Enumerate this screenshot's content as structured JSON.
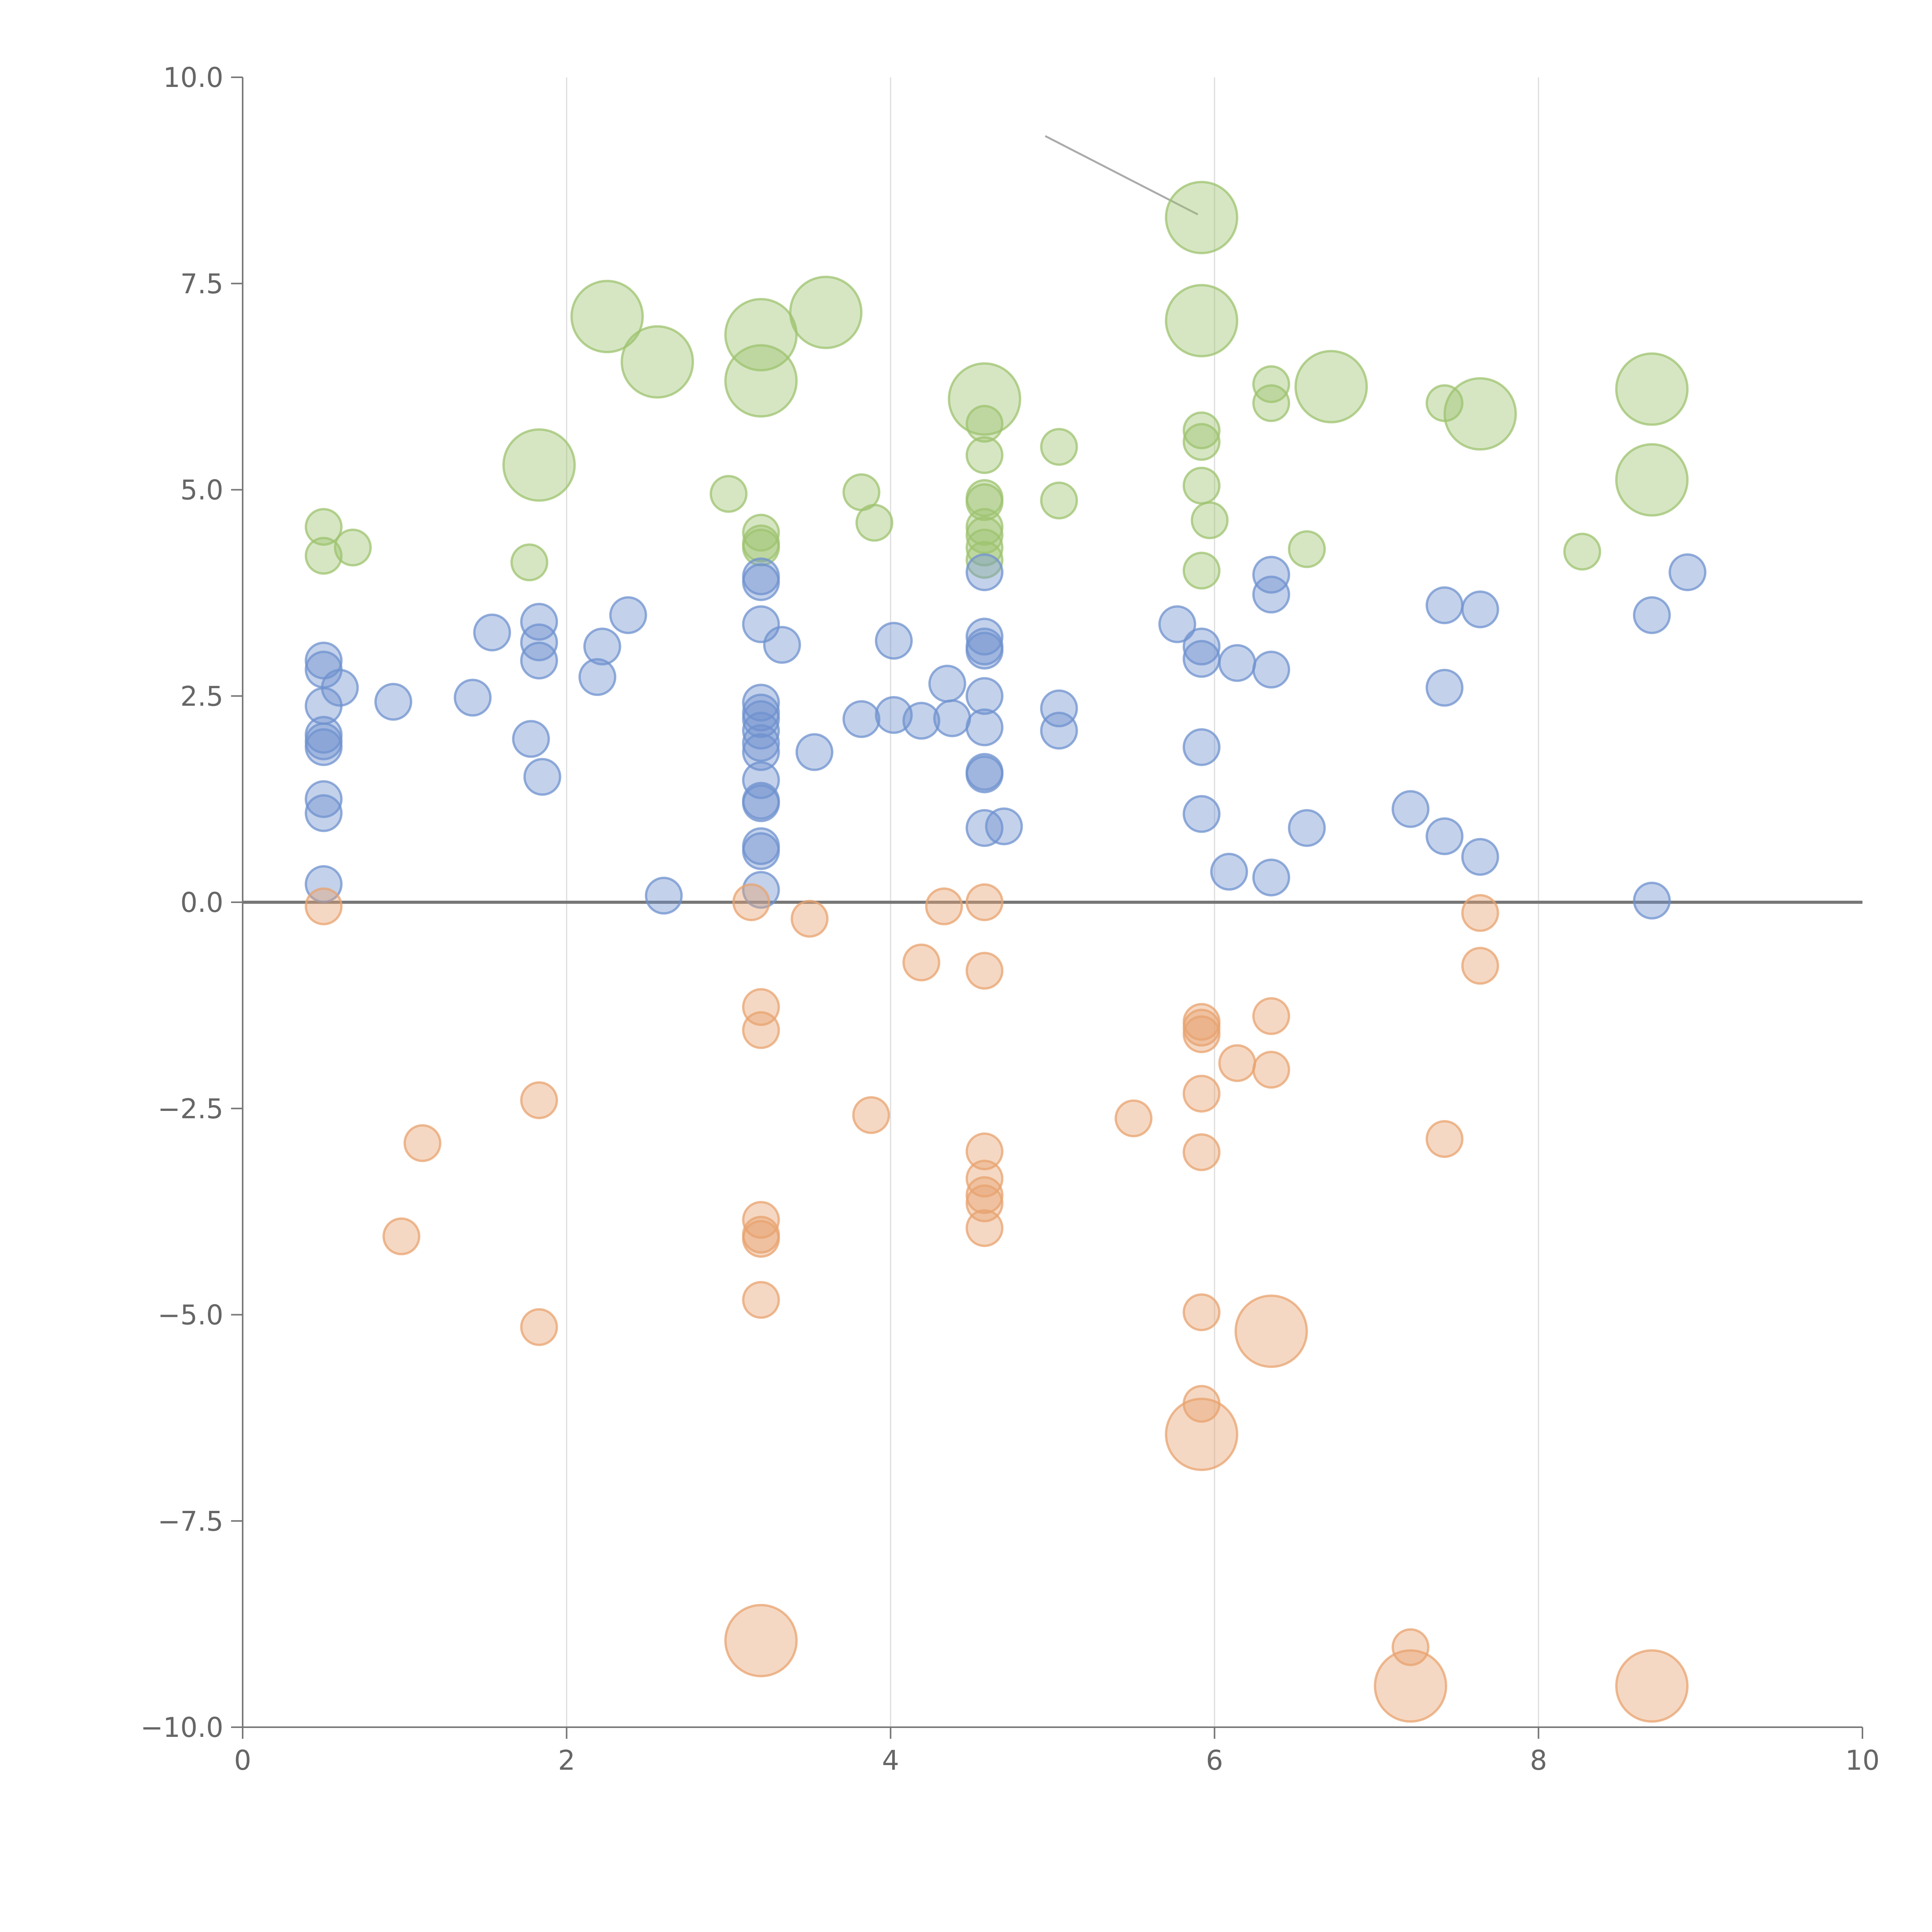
{
  "chart_data": {
    "type": "scatter",
    "title": "",
    "xlabel": "",
    "ylabel": "",
    "xlim": [
      0,
      10
    ],
    "ylim": [
      -10,
      10
    ],
    "x_ticks": [
      0,
      2,
      4,
      6,
      8,
      10
    ],
    "x_tick_labels": [
      "0",
      "2",
      "4",
      "6",
      "8",
      "10"
    ],
    "y_ticks": [
      10,
      7.5,
      5,
      2.5,
      0,
      -2.5,
      -5,
      -7.5,
      -10
    ],
    "y_tick_labels": [
      "10.0",
      "7.5",
      "5.0",
      "2.5",
      "0.0",
      "−2.5",
      "−5.0",
      "−7.5",
      "−10.0"
    ],
    "grid": "vertical lines at x ticks",
    "reference_line": {
      "y": 0
    },
    "colors": {
      "green": "#9dc36f",
      "blue": "#6f92cf",
      "orange": "#e8a36f"
    },
    "series": [
      {
        "color": "#9dc36f",
        "points": [
          {
            "x": 0.5,
            "y": 4.55,
            "size": 1
          },
          {
            "x": 0.5,
            "y": 4.2,
            "size": 1
          },
          {
            "x": 0.68,
            "y": 4.3,
            "size": 1
          },
          {
            "x": 1.77,
            "y": 4.12,
            "size": 1
          },
          {
            "x": 1.83,
            "y": 5.3,
            "size": 3
          },
          {
            "x": 2.25,
            "y": 7.1,
            "size": 3
          },
          {
            "x": 2.56,
            "y": 6.55,
            "size": 3
          },
          {
            "x": 3.0,
            "y": 4.95,
            "size": 1
          },
          {
            "x": 3.2,
            "y": 4.48,
            "size": 1
          },
          {
            "x": 3.2,
            "y": 4.35,
            "size": 1
          },
          {
            "x": 3.2,
            "y": 4.3,
            "size": 1
          },
          {
            "x": 3.2,
            "y": 6.88,
            "size": 3
          },
          {
            "x": 3.2,
            "y": 6.32,
            "size": 3
          },
          {
            "x": 3.6,
            "y": 7.15,
            "size": 3
          },
          {
            "x": 3.82,
            "y": 4.97,
            "size": 1
          },
          {
            "x": 3.9,
            "y": 4.6,
            "size": 1
          },
          {
            "x": 4.58,
            "y": 6.1,
            "size": 3
          },
          {
            "x": 4.58,
            "y": 5.8,
            "size": 1
          },
          {
            "x": 4.58,
            "y": 5.42,
            "size": 1
          },
          {
            "x": 4.58,
            "y": 4.9,
            "size": 1
          },
          {
            "x": 4.58,
            "y": 4.85,
            "size": 1
          },
          {
            "x": 4.58,
            "y": 4.55,
            "size": 1
          },
          {
            "x": 4.58,
            "y": 4.45,
            "size": 1
          },
          {
            "x": 4.58,
            "y": 4.3,
            "size": 1
          },
          {
            "x": 4.58,
            "y": 4.15,
            "size": 1
          },
          {
            "x": 5.04,
            "y": 5.52,
            "size": 1
          },
          {
            "x": 5.04,
            "y": 4.87,
            "size": 1
          },
          {
            "x": 5.92,
            "y": 8.3,
            "size": 3
          },
          {
            "x": 5.92,
            "y": 7.05,
            "size": 3
          },
          {
            "x": 5.92,
            "y": 5.72,
            "size": 1
          },
          {
            "x": 5.92,
            "y": 5.58,
            "size": 1
          },
          {
            "x": 5.92,
            "y": 5.05,
            "size": 1
          },
          {
            "x": 5.92,
            "y": 4.02,
            "size": 1
          },
          {
            "x": 5.97,
            "y": 4.63,
            "size": 1
          },
          {
            "x": 6.35,
            "y": 6.28,
            "size": 1
          },
          {
            "x": 6.35,
            "y": 6.05,
            "size": 1
          },
          {
            "x": 6.57,
            "y": 4.28,
            "size": 1
          },
          {
            "x": 6.72,
            "y": 6.25,
            "size": 3
          },
          {
            "x": 7.42,
            "y": 6.05,
            "size": 1
          },
          {
            "x": 7.64,
            "y": 5.92,
            "size": 3
          },
          {
            "x": 8.27,
            "y": 4.25,
            "size": 1
          },
          {
            "x": 8.7,
            "y": 6.22,
            "size": 3
          },
          {
            "x": 8.7,
            "y": 5.12,
            "size": 3
          }
        ]
      },
      {
        "color": "#6f92cf",
        "points": [
          {
            "x": 0.5,
            "y": 2.93,
            "size": 1
          },
          {
            "x": 0.5,
            "y": 2.82,
            "size": 1
          },
          {
            "x": 0.5,
            "y": 2.38,
            "size": 1
          },
          {
            "x": 0.5,
            "y": 2.03,
            "size": 1
          },
          {
            "x": 0.5,
            "y": 1.95,
            "size": 1
          },
          {
            "x": 0.5,
            "y": 1.88,
            "size": 1
          },
          {
            "x": 0.5,
            "y": 1.25,
            "size": 1
          },
          {
            "x": 0.5,
            "y": 1.08,
            "size": 1
          },
          {
            "x": 0.5,
            "y": 0.22,
            "size": 1
          },
          {
            "x": 0.6,
            "y": 2.6,
            "size": 1
          },
          {
            "x": 0.93,
            "y": 2.43,
            "size": 1
          },
          {
            "x": 1.42,
            "y": 2.48,
            "size": 1
          },
          {
            "x": 1.54,
            "y": 3.27,
            "size": 1
          },
          {
            "x": 1.78,
            "y": 1.98,
            "size": 1
          },
          {
            "x": 1.83,
            "y": 3.4,
            "size": 1
          },
          {
            "x": 1.83,
            "y": 3.15,
            "size": 1
          },
          {
            "x": 1.83,
            "y": 2.93,
            "size": 1
          },
          {
            "x": 1.85,
            "y": 1.52,
            "size": 1
          },
          {
            "x": 2.19,
            "y": 2.73,
            "size": 1
          },
          {
            "x": 2.22,
            "y": 3.1,
            "size": 1
          },
          {
            "x": 2.38,
            "y": 3.48,
            "size": 1
          },
          {
            "x": 2.6,
            "y": 0.08,
            "size": 1
          },
          {
            "x": 3.2,
            "y": 3.95,
            "size": 1
          },
          {
            "x": 3.2,
            "y": 3.88,
            "size": 1
          },
          {
            "x": 3.2,
            "y": 3.37,
            "size": 1
          },
          {
            "x": 3.2,
            "y": 2.42,
            "size": 1
          },
          {
            "x": 3.2,
            "y": 2.3,
            "size": 1
          },
          {
            "x": 3.2,
            "y": 2.22,
            "size": 1
          },
          {
            "x": 3.2,
            "y": 2.08,
            "size": 1
          },
          {
            "x": 3.2,
            "y": 1.93,
            "size": 1
          },
          {
            "x": 3.2,
            "y": 1.82,
            "size": 1
          },
          {
            "x": 3.2,
            "y": 1.48,
            "size": 1
          },
          {
            "x": 3.2,
            "y": 1.23,
            "size": 1
          },
          {
            "x": 3.2,
            "y": 1.2,
            "size": 1
          },
          {
            "x": 3.2,
            "y": 0.68,
            "size": 1
          },
          {
            "x": 3.2,
            "y": 0.62,
            "size": 1
          },
          {
            "x": 3.2,
            "y": 0.15,
            "size": 1
          },
          {
            "x": 3.33,
            "y": 3.12,
            "size": 1
          },
          {
            "x": 3.53,
            "y": 1.82,
            "size": 1
          },
          {
            "x": 3.82,
            "y": 2.22,
            "size": 1
          },
          {
            "x": 4.02,
            "y": 3.17,
            "size": 1
          },
          {
            "x": 4.02,
            "y": 2.27,
            "size": 1
          },
          {
            "x": 4.19,
            "y": 2.2,
            "size": 1
          },
          {
            "x": 4.35,
            "y": 2.65,
            "size": 1
          },
          {
            "x": 4.38,
            "y": 2.23,
            "size": 1
          },
          {
            "x": 4.58,
            "y": 4.0,
            "size": 1
          },
          {
            "x": 4.58,
            "y": 3.22,
            "size": 1
          },
          {
            "x": 4.58,
            "y": 3.1,
            "size": 1
          },
          {
            "x": 4.58,
            "y": 3.05,
            "size": 1
          },
          {
            "x": 4.58,
            "y": 2.5,
            "size": 1
          },
          {
            "x": 4.58,
            "y": 2.12,
            "size": 1
          },
          {
            "x": 4.58,
            "y": 1.58,
            "size": 1
          },
          {
            "x": 4.58,
            "y": 1.55,
            "size": 1
          },
          {
            "x": 4.58,
            "y": 0.9,
            "size": 1
          },
          {
            "x": 4.7,
            "y": 0.92,
            "size": 1
          },
          {
            "x": 5.04,
            "y": 2.35,
            "size": 1
          },
          {
            "x": 5.04,
            "y": 2.08,
            "size": 1
          },
          {
            "x": 5.77,
            "y": 3.37,
            "size": 1
          },
          {
            "x": 5.92,
            "y": 3.1,
            "size": 1
          },
          {
            "x": 5.92,
            "y": 2.95,
            "size": 1
          },
          {
            "x": 5.92,
            "y": 1.88,
            "size": 1
          },
          {
            "x": 5.92,
            "y": 1.07,
            "size": 1
          },
          {
            "x": 6.09,
            "y": 0.37,
            "size": 1
          },
          {
            "x": 6.14,
            "y": 2.9,
            "size": 1
          },
          {
            "x": 6.35,
            "y": 3.97,
            "size": 1
          },
          {
            "x": 6.35,
            "y": 3.73,
            "size": 1
          },
          {
            "x": 6.35,
            "y": 2.82,
            "size": 1
          },
          {
            "x": 6.35,
            "y": 0.3,
            "size": 1
          },
          {
            "x": 6.57,
            "y": 0.9,
            "size": 1
          },
          {
            "x": 7.21,
            "y": 1.13,
            "size": 1
          },
          {
            "x": 7.42,
            "y": 3.6,
            "size": 1
          },
          {
            "x": 7.42,
            "y": 2.6,
            "size": 1
          },
          {
            "x": 7.42,
            "y": 0.8,
            "size": 1
          },
          {
            "x": 7.64,
            "y": 3.55,
            "size": 1
          },
          {
            "x": 7.64,
            "y": 0.55,
            "size": 1
          },
          {
            "x": 8.7,
            "y": 3.48,
            "size": 1
          },
          {
            "x": 8.7,
            "y": 0.02,
            "size": 1
          },
          {
            "x": 8.92,
            "y": 4.0,
            "size": 1
          }
        ]
      },
      {
        "color": "#e8a36f",
        "points": [
          {
            "x": 0.5,
            "y": -0.05,
            "size": 1
          },
          {
            "x": 0.98,
            "y": -4.05,
            "size": 1
          },
          {
            "x": 1.11,
            "y": -2.92,
            "size": 1
          },
          {
            "x": 1.83,
            "y": -2.4,
            "size": 1
          },
          {
            "x": 1.83,
            "y": -5.15,
            "size": 1
          },
          {
            "x": 3.14,
            "y": 0.0,
            "size": 1
          },
          {
            "x": 3.2,
            "y": -1.27,
            "size": 1
          },
          {
            "x": 3.2,
            "y": -1.55,
            "size": 1
          },
          {
            "x": 3.2,
            "y": -3.85,
            "size": 1
          },
          {
            "x": 3.2,
            "y": -4.03,
            "size": 1
          },
          {
            "x": 3.2,
            "y": -4.08,
            "size": 1
          },
          {
            "x": 3.2,
            "y": -4.82,
            "size": 1
          },
          {
            "x": 3.2,
            "y": -8.95,
            "size": 3
          },
          {
            "x": 3.5,
            "y": -0.2,
            "size": 1
          },
          {
            "x": 3.88,
            "y": -2.58,
            "size": 1
          },
          {
            "x": 4.19,
            "y": -0.73,
            "size": 1
          },
          {
            "x": 4.33,
            "y": -0.05,
            "size": 1
          },
          {
            "x": 4.58,
            "y": 0.0,
            "size": 1
          },
          {
            "x": 4.58,
            "y": -0.83,
            "size": 1
          },
          {
            "x": 4.58,
            "y": -3.02,
            "size": 1
          },
          {
            "x": 4.58,
            "y": -3.35,
            "size": 1
          },
          {
            "x": 4.58,
            "y": -3.55,
            "size": 1
          },
          {
            "x": 4.58,
            "y": -3.65,
            "size": 1
          },
          {
            "x": 4.58,
            "y": -3.95,
            "size": 1
          },
          {
            "x": 5.5,
            "y": -2.62,
            "size": 1
          },
          {
            "x": 5.92,
            "y": -1.45,
            "size": 1
          },
          {
            "x": 5.92,
            "y": -1.52,
            "size": 1
          },
          {
            "x": 5.92,
            "y": -1.6,
            "size": 1
          },
          {
            "x": 5.92,
            "y": -2.32,
            "size": 1
          },
          {
            "x": 5.92,
            "y": -3.03,
            "size": 1
          },
          {
            "x": 5.92,
            "y": -4.97,
            "size": 1
          },
          {
            "x": 5.92,
            "y": -6.08,
            "size": 1
          },
          {
            "x": 5.92,
            "y": -6.45,
            "size": 3
          },
          {
            "x": 6.14,
            "y": -1.95,
            "size": 1
          },
          {
            "x": 6.35,
            "y": -1.38,
            "size": 1
          },
          {
            "x": 6.35,
            "y": -2.03,
            "size": 1
          },
          {
            "x": 6.35,
            "y": -5.2,
            "size": 3
          },
          {
            "x": 7.21,
            "y": -9.03,
            "size": 1
          },
          {
            "x": 7.21,
            "y": -9.5,
            "size": 3
          },
          {
            "x": 7.42,
            "y": -2.87,
            "size": 1
          },
          {
            "x": 7.64,
            "y": -0.13,
            "size": 1
          },
          {
            "x": 7.64,
            "y": -0.77,
            "size": 1
          },
          {
            "x": 8.7,
            "y": -9.5,
            "size": 3
          }
        ]
      }
    ]
  }
}
